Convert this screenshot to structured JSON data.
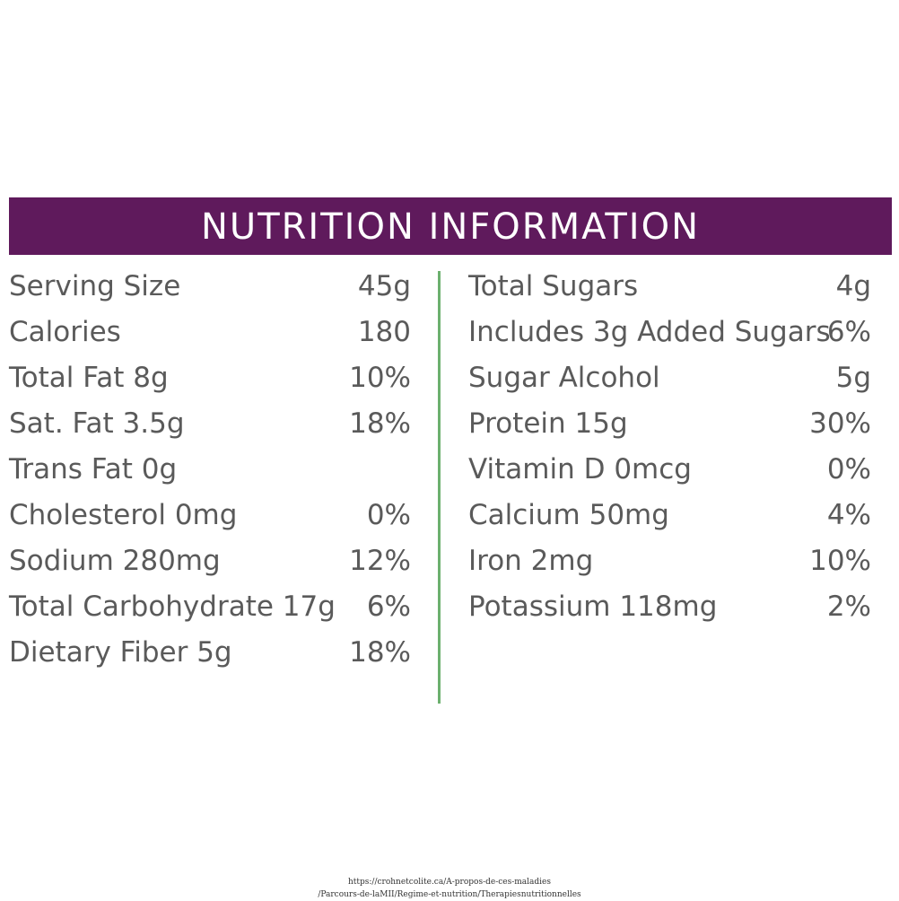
{
  "header": {
    "title": "NUTRITION INFORMATION",
    "bar_color": "#5f1a5c",
    "divider_color": "#6cb06e"
  },
  "left_column": [
    {
      "label": "Serving Size",
      "value": "45g"
    },
    {
      "label": "Calories",
      "value": "180"
    },
    {
      "label": "Total Fat 8g",
      "value": "10%"
    },
    {
      "label": "Sat. Fat 3.5g",
      "value": "18%"
    },
    {
      "label": "Trans Fat 0g",
      "value": ""
    },
    {
      "label": "Cholesterol 0mg",
      "value": "0%"
    },
    {
      "label": "Sodium 280mg",
      "value": "12%"
    },
    {
      "label": "Total Carbohydrate 17g",
      "value": "6%"
    },
    {
      "label": "Dietary Fiber 5g",
      "value": "18%"
    }
  ],
  "right_column": [
    {
      "label": "Total Sugars",
      "value": "4g"
    },
    {
      "label": "Includes 3g Added Sugars",
      "value": "6%"
    },
    {
      "label": "Sugar Alcohol",
      "value": "5g"
    },
    {
      "label": "Protein 15g",
      "value": "30%"
    },
    {
      "label": "Vitamin D 0mcg",
      "value": "0%"
    },
    {
      "label": "Calcium 50mg",
      "value": "4%"
    },
    {
      "label": "Iron 2mg",
      "value": "10%"
    },
    {
      "label": "Potassium 118mg",
      "value": "2%"
    }
  ],
  "source": {
    "line1": "https://crohnetcolite.ca/A-propos-de-ces-maladies",
    "line2": "/Parcours-de-laMII/Regime-et-nutrition/Therapiesnutritionnelles"
  }
}
